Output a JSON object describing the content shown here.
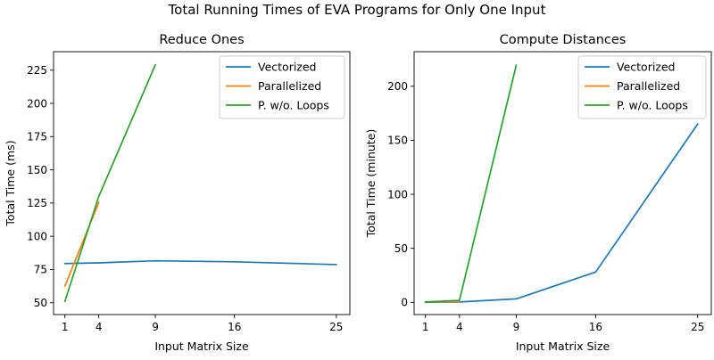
{
  "figure": {
    "suptitle": "Total Running Times of EVA Programs for Only One Input"
  },
  "chart_data": [
    {
      "type": "line",
      "title": "Reduce Ones",
      "xlabel": "Input Matrix Size",
      "ylabel": "Total Time (ms)",
      "xlim": [
        0.0,
        26.2
      ],
      "ylim": [
        41.1,
        238.9
      ],
      "xticks": [
        1,
        4,
        9,
        16,
        25
      ],
      "yticks": [
        50,
        75,
        100,
        125,
        150,
        175,
        200,
        225
      ],
      "legend_position": "top-right",
      "series": [
        {
          "name": "Vectorized",
          "color": "#1f77b4",
          "x": [
            1,
            4,
            9,
            16,
            25
          ],
          "y": [
            79.5,
            80,
            81.5,
            80.8,
            78.7
          ]
        },
        {
          "name": "Parallelized",
          "color": "#ff7f0e",
          "x": [
            1,
            4
          ],
          "y": [
            62.5,
            125.5
          ]
        },
        {
          "name": "P. w/o. Loops",
          "color": "#2ca02c",
          "x": [
            1,
            4,
            9
          ],
          "y": [
            51,
            130,
            229
          ]
        }
      ]
    },
    {
      "type": "line",
      "title": "Compute Distances",
      "xlabel": "Input Matrix Size",
      "ylabel": "Total Time (minute)",
      "xlim": [
        0.0,
        26.2
      ],
      "ylim": [
        -11.3,
        232
      ],
      "xticks": [
        1,
        4,
        9,
        16,
        25
      ],
      "yticks": [
        0,
        50,
        100,
        150,
        200
      ],
      "legend_position": "top-right",
      "series": [
        {
          "name": "Vectorized",
          "color": "#1f77b4",
          "x": [
            1,
            4,
            9,
            16,
            25
          ],
          "y": [
            0,
            0.3,
            3.2,
            28,
            165
          ]
        },
        {
          "name": "Parallelized",
          "color": "#ff7f0e",
          "x": [
            1,
            4
          ],
          "y": [
            0.3,
            0.8
          ]
        },
        {
          "name": "P. w/o. Loops",
          "color": "#2ca02c",
          "x": [
            1,
            4,
            9
          ],
          "y": [
            0.3,
            1.8,
            219.5
          ]
        }
      ]
    }
  ]
}
